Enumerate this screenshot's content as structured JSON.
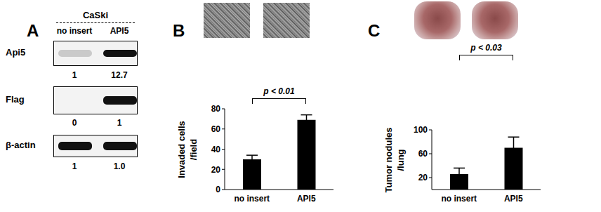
{
  "panel_a": {
    "title": "A",
    "cell_line": "CaSki",
    "lanes": [
      "no insert",
      "API5"
    ],
    "rows": [
      {
        "label": "Api5",
        "values": [
          "1",
          "12.7"
        ]
      },
      {
        "label": "Flag",
        "values": [
          "0",
          "1"
        ]
      },
      {
        "label": "β-actin",
        "values": [
          "1",
          "1.0"
        ]
      }
    ]
  },
  "chart_data": [
    {
      "type": "bar",
      "title": "B",
      "ylabel": "Invaded cells /field",
      "categories": [
        "no insert",
        "API5"
      ],
      "values": [
        30,
        69
      ],
      "errors": [
        4,
        5
      ],
      "color": "#000000",
      "ylim": [
        0,
        80
      ],
      "yticks": [
        0,
        20,
        40,
        60,
        80
      ],
      "annotations": [
        "p < 0.01"
      ]
    },
    {
      "type": "bar",
      "title": "C",
      "ylabel": "Tumor nodules /lung",
      "categories": [
        "no insert",
        "API5"
      ],
      "values": [
        26,
        70
      ],
      "errors": [
        10,
        18
      ],
      "color": "#000000",
      "ylim": [
        0,
        100
      ],
      "yticks": [
        0,
        20,
        40,
        60,
        80,
        100
      ],
      "annotations": [
        "p < 0.03"
      ]
    }
  ]
}
